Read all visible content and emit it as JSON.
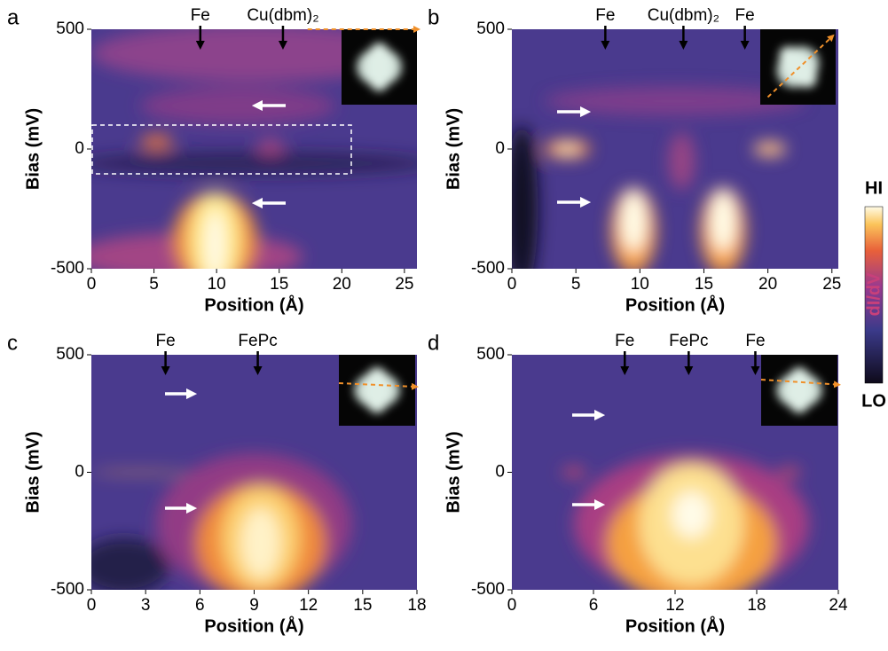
{
  "chart_data": [
    {
      "type": "heatmap",
      "panel": "a",
      "xlabel": "Position (Å)",
      "ylabel": "Bias (mV)",
      "xlim": [
        0,
        26
      ],
      "ylim": [
        -500,
        500
      ],
      "xticks": [
        0,
        5,
        10,
        15,
        20,
        25
      ],
      "yticks": [
        -500,
        0,
        500
      ],
      "annotations": [
        {
          "label": "Fe",
          "x": 8.7
        },
        {
          "label": "Cu(dbm)₂",
          "x": 15.3
        }
      ]
    },
    {
      "type": "heatmap",
      "panel": "b",
      "xlabel": "Position (Å)",
      "ylabel": "Bias (mV)",
      "xlim": [
        0,
        25.5
      ],
      "ylim": [
        -500,
        500
      ],
      "xticks": [
        0,
        5,
        10,
        15,
        20,
        25
      ],
      "yticks": [
        -500,
        0,
        500
      ],
      "annotations": [
        {
          "label": "Fe",
          "x": 7.3
        },
        {
          "label": "Cu(dbm)₂",
          "x": 13.4
        },
        {
          "label": "Fe",
          "x": 18.2
        }
      ]
    },
    {
      "type": "heatmap",
      "panel": "c",
      "xlabel": "Position (Å)",
      "ylabel": "Bias (mV)",
      "xlim": [
        0,
        18
      ],
      "ylim": [
        -500,
        500
      ],
      "xticks": [
        0,
        3,
        6,
        9,
        12,
        15,
        18
      ],
      "yticks": [
        -500,
        0,
        500
      ],
      "annotations": [
        {
          "label": "Fe",
          "x": 4.1
        },
        {
          "label": "FePc",
          "x": 9.2
        }
      ]
    },
    {
      "type": "heatmap",
      "panel": "d",
      "xlabel": "Position (Å)",
      "ylabel": "Bias (mV)",
      "xlim": [
        0,
        24
      ],
      "ylim": [
        -500,
        500
      ],
      "xticks": [
        0,
        6,
        12,
        18,
        24
      ],
      "yticks": [
        -500,
        0,
        500
      ],
      "annotations": [
        {
          "label": "Fe",
          "x": 8.3
        },
        {
          "label": "FePc",
          "x": 13.0
        },
        {
          "label": "Fe",
          "x": 17.9
        }
      ]
    }
  ],
  "colorbar": {
    "high": "HI",
    "label": "dI/dV",
    "low": "LO"
  }
}
